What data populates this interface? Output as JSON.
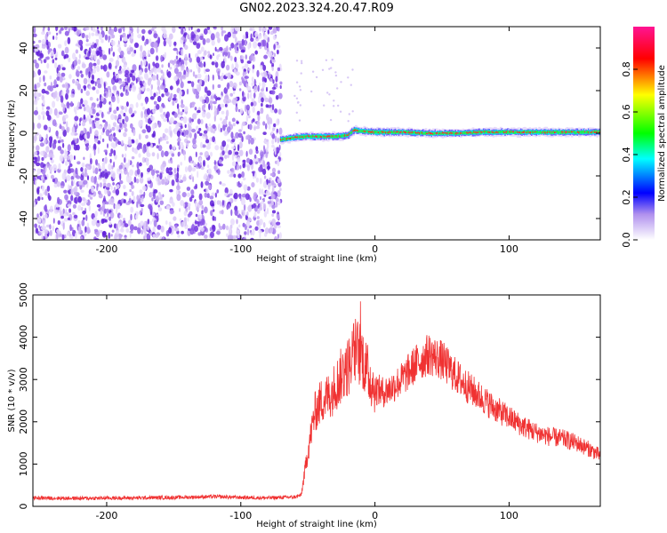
{
  "title": "GN02.2023.324.20.47.R09",
  "chart_data": [
    {
      "type": "heatmap",
      "xlabel": "Height of straight line (km)",
      "ylabel": "Frequency (Hz)",
      "xlim": [
        -255,
        168
      ],
      "ylim": [
        -50,
        50
      ],
      "xticks": [
        -200,
        -100,
        0,
        100
      ],
      "yticks": [
        -40,
        -20,
        0,
        20,
        40
      ],
      "colorbar": {
        "label": "Normalized spectral amplitude",
        "range": [
          0,
          1
        ],
        "ticks": [
          "0.0",
          "0.2",
          "0.4",
          "0.6",
          "0.8"
        ],
        "tick_values": [
          0.0,
          0.2,
          0.4,
          0.6,
          0.8
        ],
        "colors": [
          "#ffffff",
          "#8a2be2",
          "#0000ff",
          "#00ffff",
          "#00ff00",
          "#ffff00",
          "#ff0000",
          "#ff1493"
        ]
      },
      "regions": [
        {
          "from": -255,
          "to": -70,
          "description_level": 0.1
        },
        {
          "from": -70,
          "to": 168,
          "center_frequency": 0
        }
      ],
      "signal_track": {
        "x": [
          -70,
          -60,
          -50,
          -40,
          -30,
          -20,
          -15,
          -10,
          0,
          20,
          40,
          60,
          80,
          100,
          120,
          140,
          160,
          168
        ],
        "y": [
          -3,
          -2,
          -1.5,
          -1.5,
          -1.5,
          -1,
          1.5,
          1,
          0.5,
          0.5,
          0,
          0,
          0.5,
          0.5,
          0.5,
          0.5,
          0.5,
          0.5
        ]
      }
    },
    {
      "type": "line",
      "xlabel": "Height of straight line (km)",
      "ylabel": "SNR (10 * v/v)",
      "xlim": [
        -255,
        168
      ],
      "ylim": [
        0,
        5000
      ],
      "xticks": [
        -200,
        -100,
        0,
        100
      ],
      "yticks": [
        0,
        1000,
        2000,
        3000,
        4000,
        5000
      ],
      "color": "#f03232",
      "series": [
        {
          "x": [
            -255,
            -220,
            -180,
            -150,
            -120,
            -100,
            -80,
            -60,
            -55,
            -50,
            -45,
            -40,
            -35,
            -30,
            -25,
            -20,
            -15,
            -10,
            -5,
            0,
            5,
            10,
            20,
            30,
            40,
            50,
            60,
            70,
            80,
            90,
            100,
            110,
            120,
            130,
            140,
            150,
            160,
            168
          ],
          "y": [
            200,
            190,
            200,
            210,
            230,
            210,
            200,
            220,
            260,
            1300,
            2200,
            2500,
            2600,
            2800,
            3100,
            3300,
            3700,
            3600,
            3100,
            2800,
            2700,
            2750,
            3000,
            3350,
            3600,
            3450,
            3100,
            2800,
            2550,
            2300,
            2100,
            1900,
            1750,
            1650,
            1600,
            1500,
            1350,
            1200
          ]
        }
      ]
    }
  ]
}
